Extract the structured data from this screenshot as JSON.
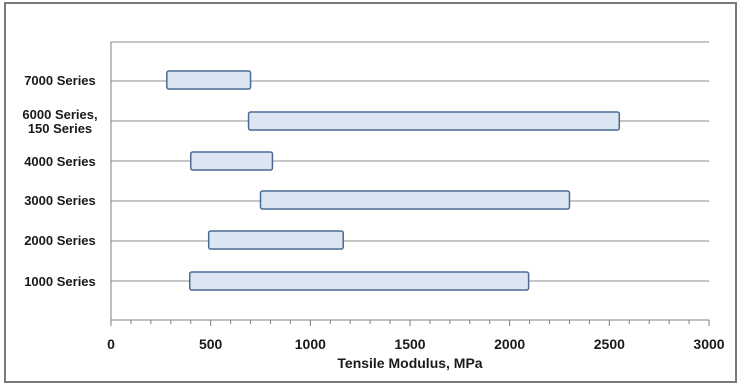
{
  "chart_data": {
    "type": "bar",
    "orientation": "horizontal-floating",
    "title": "",
    "xlabel": "Tensile Modulus, MPa",
    "ylabel": "",
    "xlim": [
      0,
      3000
    ],
    "x_ticks": [
      "0",
      "500",
      "1000",
      "1500",
      "2000",
      "2500",
      "3000"
    ],
    "grid": "horizontal",
    "colors": {
      "bar_fill": "#dce6f2",
      "bar_stroke": "#4a6a94",
      "grid": "#8c8c8c",
      "axis": "#7f7f7f"
    },
    "categories": [
      "7000 Series",
      "6000 Series,\n150 Series",
      "4000 Series",
      "3000 Series",
      "2000 Series",
      "1000 Series"
    ],
    "ranges": [
      {
        "low": 280,
        "high": 700
      },
      {
        "low": 690,
        "high": 2550
      },
      {
        "low": 400,
        "high": 810
      },
      {
        "low": 750,
        "high": 2300
      },
      {
        "low": 490,
        "high": 1165
      },
      {
        "low": 395,
        "high": 2095
      }
    ]
  }
}
